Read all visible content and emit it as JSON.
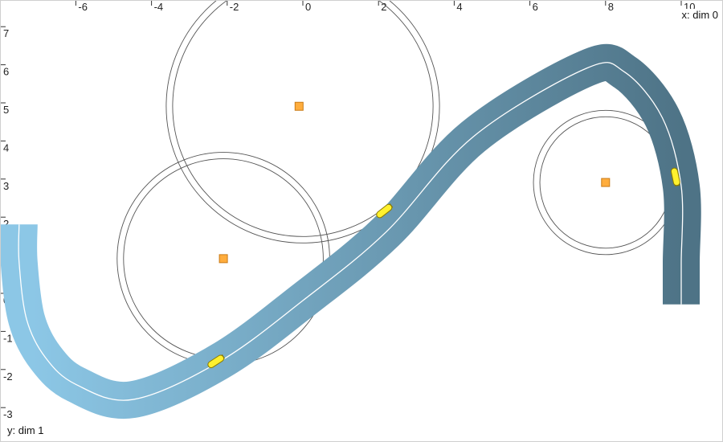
{
  "axes": {
    "x_title": "x: dim 0",
    "y_title": "y: dim 1",
    "x_ticks": [
      -6,
      -4,
      -2,
      0,
      2,
      4,
      6,
      8,
      10
    ],
    "y_ticks": [
      7,
      6,
      5,
      4,
      3,
      2,
      1,
      0,
      -1,
      -2,
      -3
    ]
  },
  "colors": {
    "track_start": "#8cc7e6",
    "track_end": "#4e7386",
    "centerline": "#ffffff",
    "circle_stroke": "#555555",
    "marker_fill": "#ffad3d",
    "marker_stroke": "#c97a16",
    "vehicle_fill": "#fff12e",
    "vehicle_stroke": "#8a7a00",
    "label_bg": "#ffffff"
  },
  "track": {
    "points": [
      [
        -7.5,
        2.0
      ],
      [
        -7.5,
        1.0
      ],
      [
        -7.3,
        -0.5
      ],
      [
        -6.8,
        -1.5
      ],
      [
        -6.0,
        -2.2
      ],
      [
        -4.5,
        -2.6
      ],
      [
        -2.2,
        -1.6
      ],
      [
        0.0,
        0.0
      ],
      [
        2.2,
        1.8
      ],
      [
        4.5,
        4.3
      ],
      [
        7.5,
        6.1
      ],
      [
        8.5,
        6.0
      ],
      [
        9.5,
        4.8
      ],
      [
        10.0,
        3.0
      ],
      [
        10.0,
        1.0
      ],
      [
        10.0,
        -0.1
      ]
    ]
  },
  "circles": [
    {
      "name": "circle-top",
      "cx": 0.0,
      "cy": 5.1,
      "r": 3.6
    },
    {
      "name": "circle-left",
      "cx": -2.1,
      "cy": 1.1,
      "r": 2.8
    },
    {
      "name": "circle-right",
      "cx": 8.0,
      "cy": 3.1,
      "r": 1.9
    }
  ],
  "markers": [
    {
      "name": "target-marker-top",
      "x": -0.1,
      "y": 5.1
    },
    {
      "name": "target-marker-left",
      "x": -2.1,
      "y": 1.1
    },
    {
      "name": "target-marker-right",
      "x": 8.0,
      "y": 3.1
    }
  ],
  "vehicles": [
    {
      "name": "vehicle-1",
      "x": -2.3,
      "y": -1.6,
      "heading_deg": 33
    },
    {
      "name": "vehicle-2",
      "x": 2.15,
      "y": 2.35,
      "heading_deg": 38
    },
    {
      "name": "vehicle-3",
      "x": 9.85,
      "y": 3.25,
      "heading_deg": -78
    }
  ]
}
